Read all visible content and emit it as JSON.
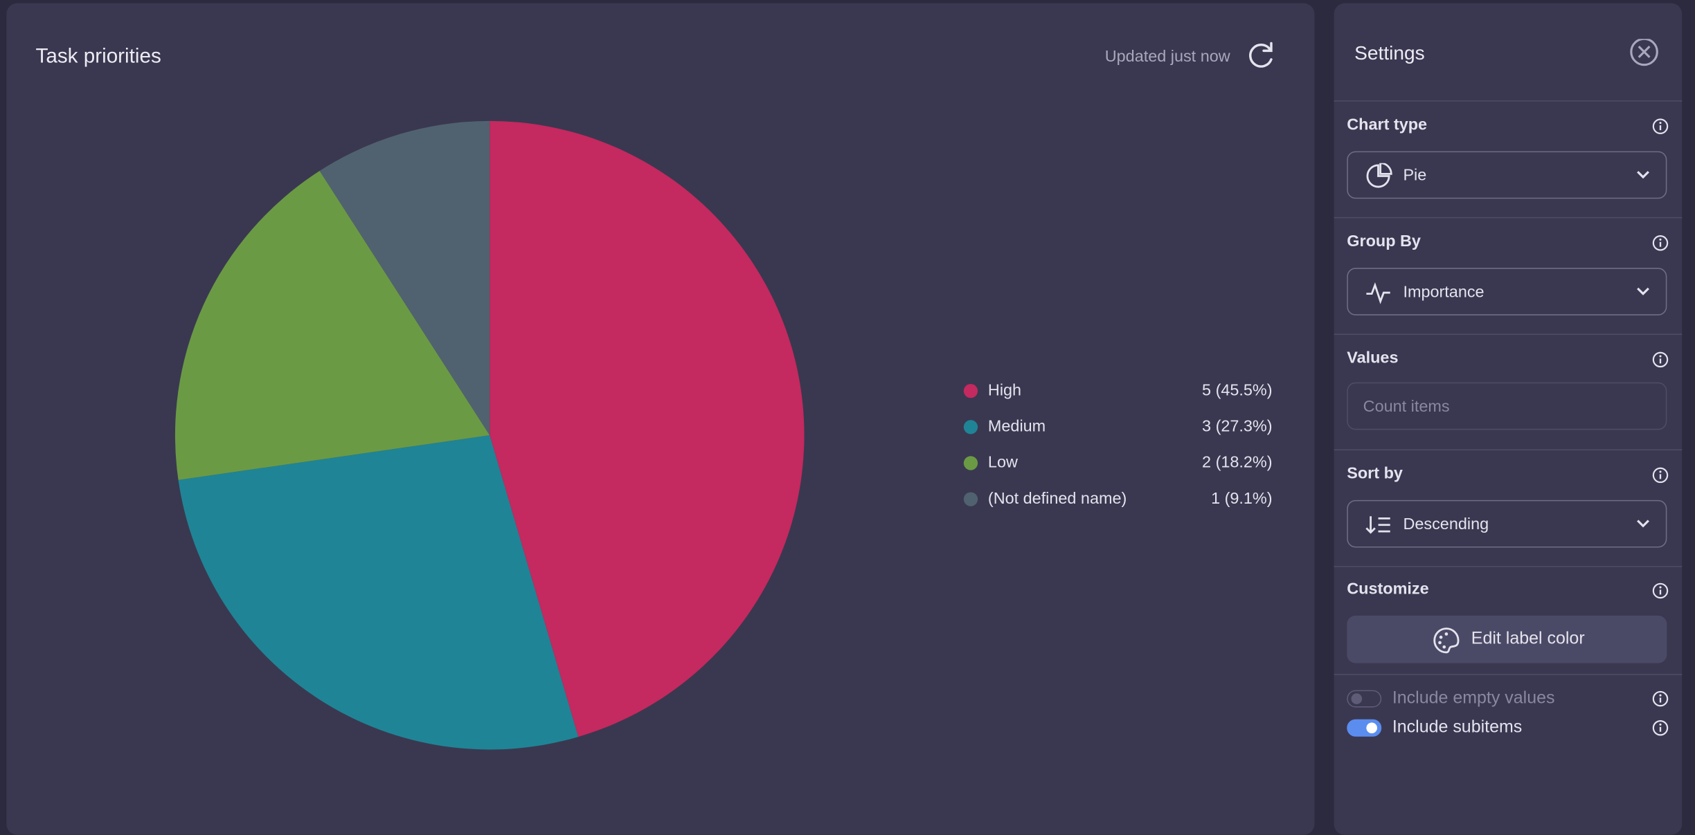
{
  "chart_data": {
    "type": "pie",
    "title": "Task priorities",
    "status": "Updated just now",
    "categories": [
      "High",
      "Medium",
      "Low",
      "(Not defined name)"
    ],
    "values": [
      5,
      3,
      2,
      1
    ],
    "value_labels": [
      "5 (45.5%)",
      "3 (27.3%)",
      "2 (18.2%)",
      "1 (9.1%)"
    ],
    "colors": [
      "#c4295f",
      "#1f8496",
      "#6b9a45",
      "#50626f"
    ]
  },
  "settings": {
    "title": "Settings",
    "sections": [
      {
        "label": "Chart type",
        "value": "Pie"
      },
      {
        "label": "Group By",
        "value": "Importance"
      },
      {
        "label": "Values",
        "placeholder": "Count items"
      },
      {
        "label": "Sort by",
        "value": "Descending"
      },
      {
        "label": "Customize",
        "button": "Edit label color"
      }
    ],
    "toggles": [
      {
        "label": "Include empty values",
        "on": false
      },
      {
        "label": "Include subitems",
        "on": true
      }
    ]
  }
}
